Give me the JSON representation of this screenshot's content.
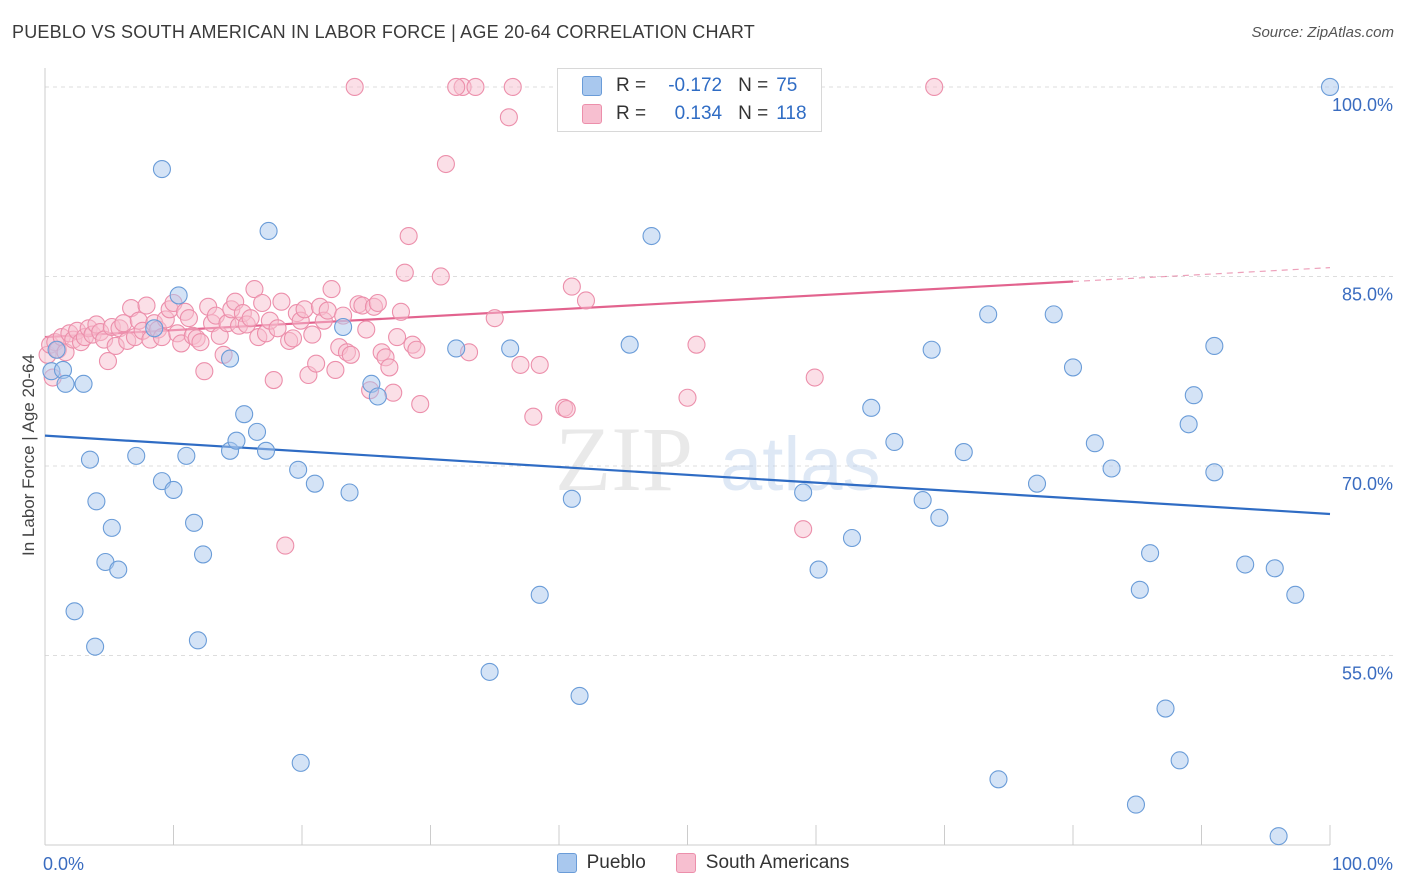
{
  "title": "PUEBLO VS SOUTH AMERICAN IN LABOR FORCE | AGE 20-64 CORRELATION CHART",
  "source": "Source: ZipAtlas.com",
  "watermark": {
    "zip": "ZIP",
    "atlas": "atlas"
  },
  "legend": {
    "r_label": "R =",
    "n_label": "N =",
    "rows": [
      {
        "r": "-0.172",
        "n": "75"
      },
      {
        "r": "0.134",
        "n": "118"
      }
    ]
  },
  "colors": {
    "pueblo_fill": "#a9c8ee",
    "pueblo_stroke": "#6a9cd8",
    "pueblo_line": "#2f6cc4",
    "sa_fill": "#f7bfd0",
    "sa_stroke": "#ec8fab",
    "sa_line": "#e2638e",
    "axis_text": "#3a6cc0",
    "grid": "#dddddd"
  },
  "chart_data": {
    "type": "scatter",
    "title": "PUEBLO VS SOUTH AMERICAN IN LABOR FORCE | AGE 20-64 CORRELATION CHART",
    "xlabel": "",
    "ylabel": "In Labor Force | Age 20-64",
    "xlim": [
      0,
      100
    ],
    "ylim": [
      40,
      101.5
    ],
    "x_tick_labels": [
      {
        "value": 0,
        "label": "0.0%"
      },
      {
        "value": 100,
        "label": "100.0%"
      }
    ],
    "y_tick_labels": [
      {
        "value": 100,
        "label": "100.0%"
      },
      {
        "value": 85,
        "label": "85.0%"
      },
      {
        "value": 70,
        "label": "70.0%"
      },
      {
        "value": 55,
        "label": "55.0%"
      }
    ],
    "grid": true,
    "legend_position": "top-center",
    "series": [
      {
        "name": "Pueblo",
        "r": -0.172,
        "n": 75,
        "trend": {
          "x": [
            0,
            100
          ],
          "y": [
            72.4,
            66.2
          ]
        },
        "points": [
          [
            0.5,
            77.5
          ],
          [
            0.9,
            79.2
          ],
          [
            1.4,
            77.6
          ],
          [
            1.6,
            76.5
          ],
          [
            3.0,
            76.5
          ],
          [
            3.5,
            70.5
          ],
          [
            4.0,
            67.2
          ],
          [
            5.2,
            65.1
          ],
          [
            4.7,
            62.4
          ],
          [
            5.7,
            61.8
          ],
          [
            2.3,
            58.5
          ],
          [
            3.9,
            55.7
          ],
          [
            7.1,
            70.8
          ],
          [
            9.1,
            93.5
          ],
          [
            9.1,
            68.8
          ],
          [
            10.0,
            68.1
          ],
          [
            10.4,
            83.5
          ],
          [
            11.0,
            70.8
          ],
          [
            11.6,
            65.5
          ],
          [
            12.3,
            63.0
          ],
          [
            11.9,
            56.2
          ],
          [
            14.4,
            78.5
          ],
          [
            14.4,
            71.2
          ],
          [
            14.9,
            72.0
          ],
          [
            15.5,
            74.1
          ],
          [
            16.5,
            72.7
          ],
          [
            17.2,
            71.2
          ],
          [
            17.4,
            88.6
          ],
          [
            19.7,
            69.7
          ],
          [
            21.0,
            68.6
          ],
          [
            23.2,
            81.0
          ],
          [
            23.7,
            67.9
          ],
          [
            25.4,
            76.5
          ],
          [
            25.9,
            75.5
          ],
          [
            19.9,
            46.5
          ],
          [
            32.0,
            79.3
          ],
          [
            34.6,
            53.7
          ],
          [
            36.2,
            79.3
          ],
          [
            38.5,
            59.8
          ],
          [
            41.0,
            67.4
          ],
          [
            41.6,
            51.8
          ],
          [
            45.5,
            79.6
          ],
          [
            47.2,
            88.2
          ],
          [
            59.2,
            100.0
          ],
          [
            59.0,
            67.9
          ],
          [
            60.2,
            61.8
          ],
          [
            62.8,
            64.3
          ],
          [
            64.3,
            74.6
          ],
          [
            66.1,
            71.9
          ],
          [
            68.3,
            67.3
          ],
          [
            69.0,
            79.2
          ],
          [
            69.6,
            65.9
          ],
          [
            71.5,
            71.1
          ],
          [
            73.4,
            82.0
          ],
          [
            74.2,
            45.2
          ],
          [
            77.2,
            68.6
          ],
          [
            78.5,
            82.0
          ],
          [
            80.0,
            77.8
          ],
          [
            81.7,
            71.8
          ],
          [
            83.0,
            69.8
          ],
          [
            84.9,
            43.2
          ],
          [
            85.2,
            60.2
          ],
          [
            86.0,
            63.1
          ],
          [
            87.2,
            50.8
          ],
          [
            88.3,
            46.7
          ],
          [
            89.0,
            73.3
          ],
          [
            89.4,
            75.6
          ],
          [
            91.0,
            69.5
          ],
          [
            91.0,
            79.5
          ],
          [
            93.4,
            62.2
          ],
          [
            95.7,
            61.9
          ],
          [
            96.0,
            40.7
          ],
          [
            97.3,
            59.8
          ],
          [
            100.0,
            100.0
          ],
          [
            8.5,
            80.9
          ]
        ]
      },
      {
        "name": "South Americans",
        "r": 0.134,
        "n": 118,
        "trend": {
          "x": [
            0,
            80
          ],
          "y": [
            80.2,
            84.6
          ]
        },
        "trend_dashed": {
          "x": [
            80,
            100
          ],
          "y": [
            84.6,
            85.7
          ]
        },
        "points": [
          [
            0.2,
            78.8
          ],
          [
            0.4,
            79.6
          ],
          [
            0.6,
            77.0
          ],
          [
            0.8,
            79.8
          ],
          [
            1.0,
            79.2
          ],
          [
            1.3,
            80.2
          ],
          [
            1.6,
            79.0
          ],
          [
            1.9,
            80.5
          ],
          [
            2.2,
            80.0
          ],
          [
            2.5,
            80.7
          ],
          [
            2.8,
            79.8
          ],
          [
            3.1,
            80.2
          ],
          [
            3.4,
            80.9
          ],
          [
            3.7,
            80.4
          ],
          [
            4.0,
            81.2
          ],
          [
            4.3,
            80.6
          ],
          [
            4.6,
            80.0
          ],
          [
            4.9,
            78.3
          ],
          [
            5.2,
            81.0
          ],
          [
            5.5,
            79.5
          ],
          [
            5.8,
            80.9
          ],
          [
            6.1,
            81.3
          ],
          [
            6.4,
            79.9
          ],
          [
            6.7,
            82.5
          ],
          [
            7.0,
            80.2
          ],
          [
            7.3,
            81.5
          ],
          [
            7.6,
            80.7
          ],
          [
            7.9,
            82.7
          ],
          [
            8.2,
            80.0
          ],
          [
            8.5,
            81.3
          ],
          [
            8.8,
            80.8
          ],
          [
            9.1,
            80.2
          ],
          [
            9.4,
            81.6
          ],
          [
            9.7,
            82.4
          ],
          [
            10.0,
            82.9
          ],
          [
            10.3,
            80.5
          ],
          [
            10.6,
            79.7
          ],
          [
            10.9,
            82.2
          ],
          [
            11.2,
            81.7
          ],
          [
            11.5,
            80.3
          ],
          [
            11.8,
            80.1
          ],
          [
            12.1,
            79.8
          ],
          [
            12.4,
            77.5
          ],
          [
            12.7,
            82.6
          ],
          [
            13.0,
            81.3
          ],
          [
            13.3,
            81.9
          ],
          [
            13.6,
            80.3
          ],
          [
            13.9,
            78.8
          ],
          [
            14.2,
            81.3
          ],
          [
            14.5,
            82.4
          ],
          [
            14.8,
            83.0
          ],
          [
            15.1,
            81.1
          ],
          [
            15.4,
            82.1
          ],
          [
            15.7,
            81.2
          ],
          [
            16.0,
            81.7
          ],
          [
            16.3,
            84.0
          ],
          [
            16.6,
            80.2
          ],
          [
            16.9,
            82.9
          ],
          [
            17.2,
            80.5
          ],
          [
            17.5,
            81.5
          ],
          [
            17.8,
            76.8
          ],
          [
            18.1,
            80.9
          ],
          [
            18.4,
            83.0
          ],
          [
            18.7,
            63.7
          ],
          [
            19.0,
            79.9
          ],
          [
            19.3,
            80.1
          ],
          [
            19.6,
            82.1
          ],
          [
            19.9,
            81.5
          ],
          [
            20.2,
            82.4
          ],
          [
            20.5,
            77.2
          ],
          [
            20.8,
            80.4
          ],
          [
            21.1,
            78.1
          ],
          [
            21.4,
            82.6
          ],
          [
            21.7,
            81.5
          ],
          [
            22.0,
            82.3
          ],
          [
            22.3,
            84.0
          ],
          [
            22.6,
            77.6
          ],
          [
            22.9,
            79.4
          ],
          [
            23.2,
            81.9
          ],
          [
            23.5,
            79.0
          ],
          [
            23.8,
            78.8
          ],
          [
            24.1,
            100.0
          ],
          [
            24.4,
            82.8
          ],
          [
            24.7,
            82.7
          ],
          [
            25.0,
            80.8
          ],
          [
            25.3,
            76.0
          ],
          [
            25.6,
            82.6
          ],
          [
            25.9,
            82.9
          ],
          [
            26.2,
            79.0
          ],
          [
            26.5,
            78.6
          ],
          [
            26.8,
            77.8
          ],
          [
            27.1,
            75.8
          ],
          [
            27.4,
            80.2
          ],
          [
            27.7,
            82.2
          ],
          [
            28.0,
            85.3
          ],
          [
            28.3,
            88.2
          ],
          [
            28.6,
            79.6
          ],
          [
            28.9,
            79.2
          ],
          [
            29.2,
            74.9
          ],
          [
            30.8,
            85.0
          ],
          [
            31.2,
            93.9
          ],
          [
            32.5,
            100.0
          ],
          [
            33.0,
            79.0
          ],
          [
            33.5,
            100.0
          ],
          [
            35.0,
            81.7
          ],
          [
            36.1,
            97.6
          ],
          [
            36.4,
            100.0
          ],
          [
            37.0,
            78.0
          ],
          [
            38.0,
            73.9
          ],
          [
            38.5,
            78.0
          ],
          [
            40.4,
            74.6
          ],
          [
            40.6,
            74.5
          ],
          [
            41.0,
            84.2
          ],
          [
            42.1,
            83.1
          ],
          [
            50.0,
            75.4
          ],
          [
            50.7,
            79.6
          ],
          [
            59.0,
            65.0
          ],
          [
            59.9,
            77.0
          ],
          [
            69.2,
            100.0
          ],
          [
            32.0,
            100.0
          ]
        ]
      }
    ]
  }
}
